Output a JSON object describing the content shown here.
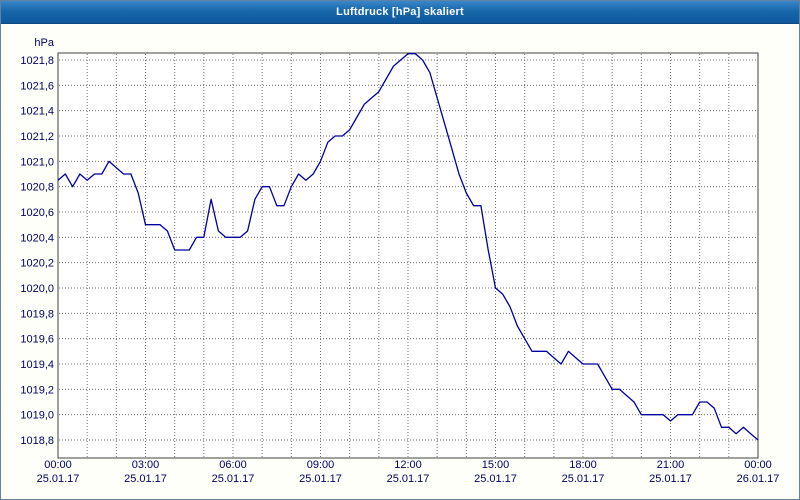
{
  "window": {
    "title": "Luftdruck [hPa] skaliert"
  },
  "colors": {
    "titlebar_blue": "#1767ab",
    "line_navy": "#0000a0",
    "grid_gray": "#707070",
    "axis_text": "#000066",
    "plot_border": "#404040",
    "background": "#fffffa"
  },
  "chart_data": {
    "type": "line",
    "title": "Luftdruck [hPa] skaliert",
    "unit_label": "hPa",
    "xlabel": "",
    "ylabel": "hPa",
    "ylim": [
      1018.8,
      1021.8
    ],
    "y_tick_step": 0.2,
    "grid": {
      "horizontal": "dotted",
      "vertical": "dotted-hourly",
      "legend": "none"
    },
    "x_range_hours": [
      0,
      24
    ],
    "sample_interval_minutes": 15,
    "y_ticks": [
      {
        "label": "1021,8",
        "value": 1021.8
      },
      {
        "label": "1021,6",
        "value": 1021.6
      },
      {
        "label": "1021,4",
        "value": 1021.4
      },
      {
        "label": "1021,2",
        "value": 1021.2
      },
      {
        "label": "1021,0",
        "value": 1021.0
      },
      {
        "label": "1020,8",
        "value": 1020.8
      },
      {
        "label": "1020,6",
        "value": 1020.6
      },
      {
        "label": "1020,4",
        "value": 1020.4
      },
      {
        "label": "1020,2",
        "value": 1020.2
      },
      {
        "label": "1020,0",
        "value": 1020.0
      },
      {
        "label": "1019,8",
        "value": 1019.8
      },
      {
        "label": "1019,6",
        "value": 1019.6
      },
      {
        "label": "1019,4",
        "value": 1019.4
      },
      {
        "label": "1019,2",
        "value": 1019.2
      },
      {
        "label": "1019,0",
        "value": 1019.0
      },
      {
        "label": "1018,8",
        "value": 1018.8
      }
    ],
    "x_ticks": [
      {
        "hour": 0,
        "time": "00:00",
        "date": "25.01.17"
      },
      {
        "hour": 3,
        "time": "03:00",
        "date": "25.01.17"
      },
      {
        "hour": 6,
        "time": "06:00",
        "date": "25.01.17"
      },
      {
        "hour": 9,
        "time": "09:00",
        "date": "25.01.17"
      },
      {
        "hour": 12,
        "time": "12:00",
        "date": "25.01.17"
      },
      {
        "hour": 15,
        "time": "15:00",
        "date": "25.01.17"
      },
      {
        "hour": 18,
        "time": "18:00",
        "date": "25.01.17"
      },
      {
        "hour": 21,
        "time": "21:00",
        "date": "25.01.17"
      },
      {
        "hour": 24,
        "time": "00:00",
        "date": "26.01.17"
      }
    ],
    "series": [
      {
        "name": "Luftdruck [hPa] skaliert",
        "color": "#0000a0",
        "values": [
          1020.85,
          1020.9,
          1020.8,
          1020.9,
          1020.85,
          1020.9,
          1020.9,
          1021.0,
          1020.95,
          1020.9,
          1020.9,
          1020.75,
          1020.5,
          1020.5,
          1020.5,
          1020.45,
          1020.3,
          1020.3,
          1020.3,
          1020.4,
          1020.4,
          1020.7,
          1020.45,
          1020.4,
          1020.4,
          1020.4,
          1020.45,
          1020.7,
          1020.8,
          1020.8,
          1020.65,
          1020.65,
          1020.8,
          1020.9,
          1020.85,
          1020.9,
          1021.0,
          1021.15,
          1021.2,
          1021.2,
          1021.25,
          1021.35,
          1021.45,
          1021.5,
          1021.55,
          1021.65,
          1021.75,
          1021.8,
          1021.85,
          1021.85,
          1021.8,
          1021.7,
          1021.5,
          1021.3,
          1021.1,
          1020.9,
          1020.75,
          1020.65,
          1020.65,
          1020.3,
          1020.0,
          1019.95,
          1019.85,
          1019.7,
          1019.6,
          1019.5,
          1019.5,
          1019.5,
          1019.45,
          1019.4,
          1019.5,
          1019.45,
          1019.4,
          1019.4,
          1019.4,
          1019.3,
          1019.2,
          1019.2,
          1019.15,
          1019.1,
          1019.0,
          1019.0,
          1019.0,
          1019.0,
          1018.95,
          1019.0,
          1019.0,
          1019.0,
          1019.1,
          1019.1,
          1019.05,
          1018.9,
          1018.9,
          1018.85,
          1018.9,
          1018.85,
          1018.8
        ]
      }
    ]
  }
}
